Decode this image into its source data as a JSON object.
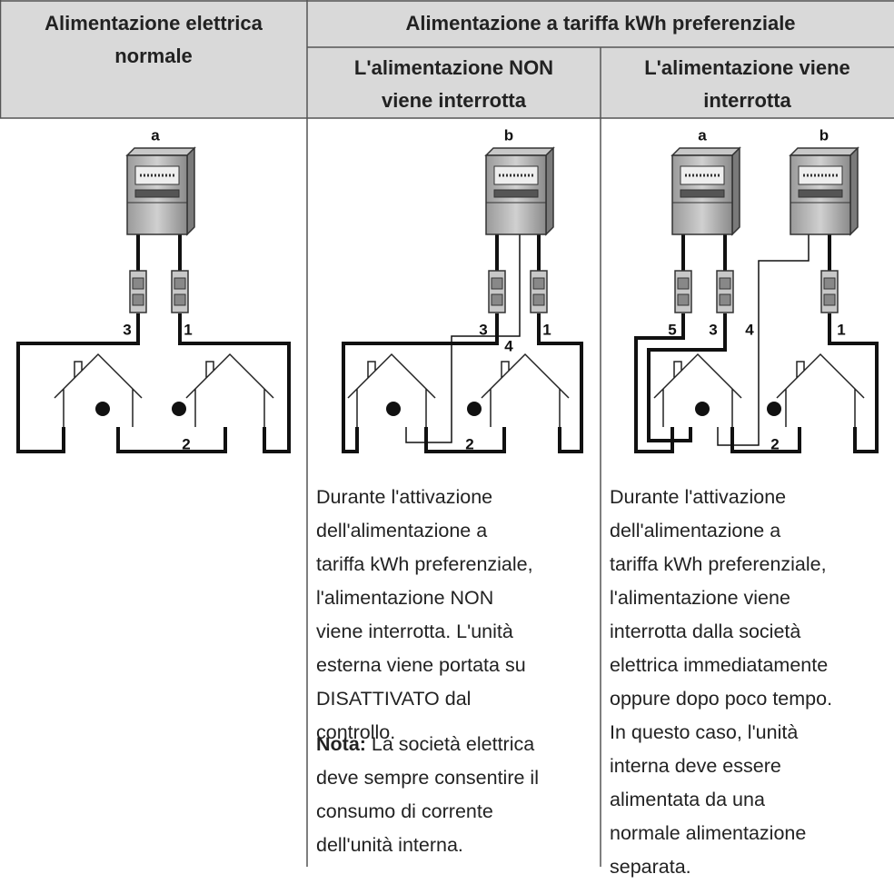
{
  "table": {
    "header": {
      "normal": [
        "Alimentazione elettrica",
        "normale"
      ],
      "preferential": "Alimentazione a tariffa kWh preferenziale",
      "not_interrupted": [
        "L'alimentazione NON",
        "viene interrotta"
      ],
      "interrupted": [
        "L'alimentazione viene",
        "interrotta"
      ]
    },
    "diagrams": [
      {
        "labels": [
          "a",
          "3",
          "1",
          "2"
        ]
      },
      {
        "labels": [
          "b",
          "3",
          "1",
          "4",
          "2"
        ]
      },
      {
        "labels": [
          "a",
          "b",
          "5",
          "3",
          "4",
          "1",
          "2"
        ]
      }
    ],
    "text": {
      "not_interrupted": [
        "Durante l'attivazione",
        "dell'alimentazione a",
        "tariffa kWh preferenziale,",
        "l'alimentazione NON",
        "viene interrotta. L'unità",
        "esterna viene portata su",
        "DISATTIVATO dal",
        "controllo."
      ],
      "note_label": "Nota:",
      "note": [
        "La società elettrica",
        "deve sempre consentire il",
        "consumo di corrente",
        "dell'unità interna."
      ],
      "interrupted": [
        "Durante l'attivazione",
        "dell'alimentazione a",
        "tariffa kWh preferenziale,",
        "l'alimentazione viene",
        "interrotta dalla società",
        "elettrica immediatamente",
        "oppure dopo poco tempo.",
        "In questo caso, l'unità",
        "interna deve essere",
        "alimentata da una",
        "normale alimentazione",
        "separata."
      ]
    }
  }
}
